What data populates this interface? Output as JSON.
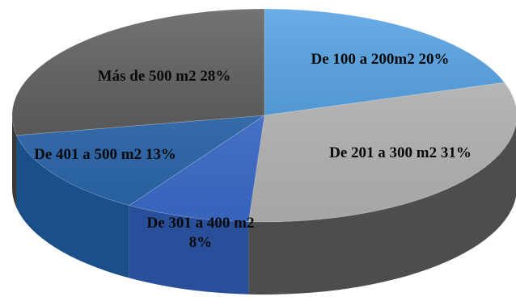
{
  "chart_data": {
    "type": "pie",
    "title": "",
    "slices": [
      {
        "label": "De 100 a 200m2",
        "value": 20,
        "display": [
          "De 100 a 200m2  20%"
        ],
        "color": "#4a9be0",
        "side": "#2f78b8"
      },
      {
        "label": "De 201 a 300 m2",
        "value": 31,
        "display": [
          "De 201 a 300 m2  31%"
        ],
        "color": "#b9b9b9",
        "side": "#4d4d4d"
      },
      {
        "label": "De 301 a 400 m2",
        "value": 8,
        "display": [
          "De 301 a 400 m2",
          "8%"
        ],
        "color": "#3d6fd0",
        "side": "#2a4f9a"
      },
      {
        "label": "De 401 a 500 m2",
        "value": 13,
        "display": [
          "De 401 a 500 m2 13%"
        ],
        "color": "#2a68b0",
        "side": "#1b4f8a"
      },
      {
        "label": "Más de 500 m2",
        "value": 28,
        "display": [
          "Más de 500 m2  28%"
        ],
        "color": "#555555",
        "side": "#3a3a3a"
      }
    ],
    "start_angle_deg": -90,
    "direction": "clockwise",
    "legend": "none",
    "style": "3d"
  }
}
